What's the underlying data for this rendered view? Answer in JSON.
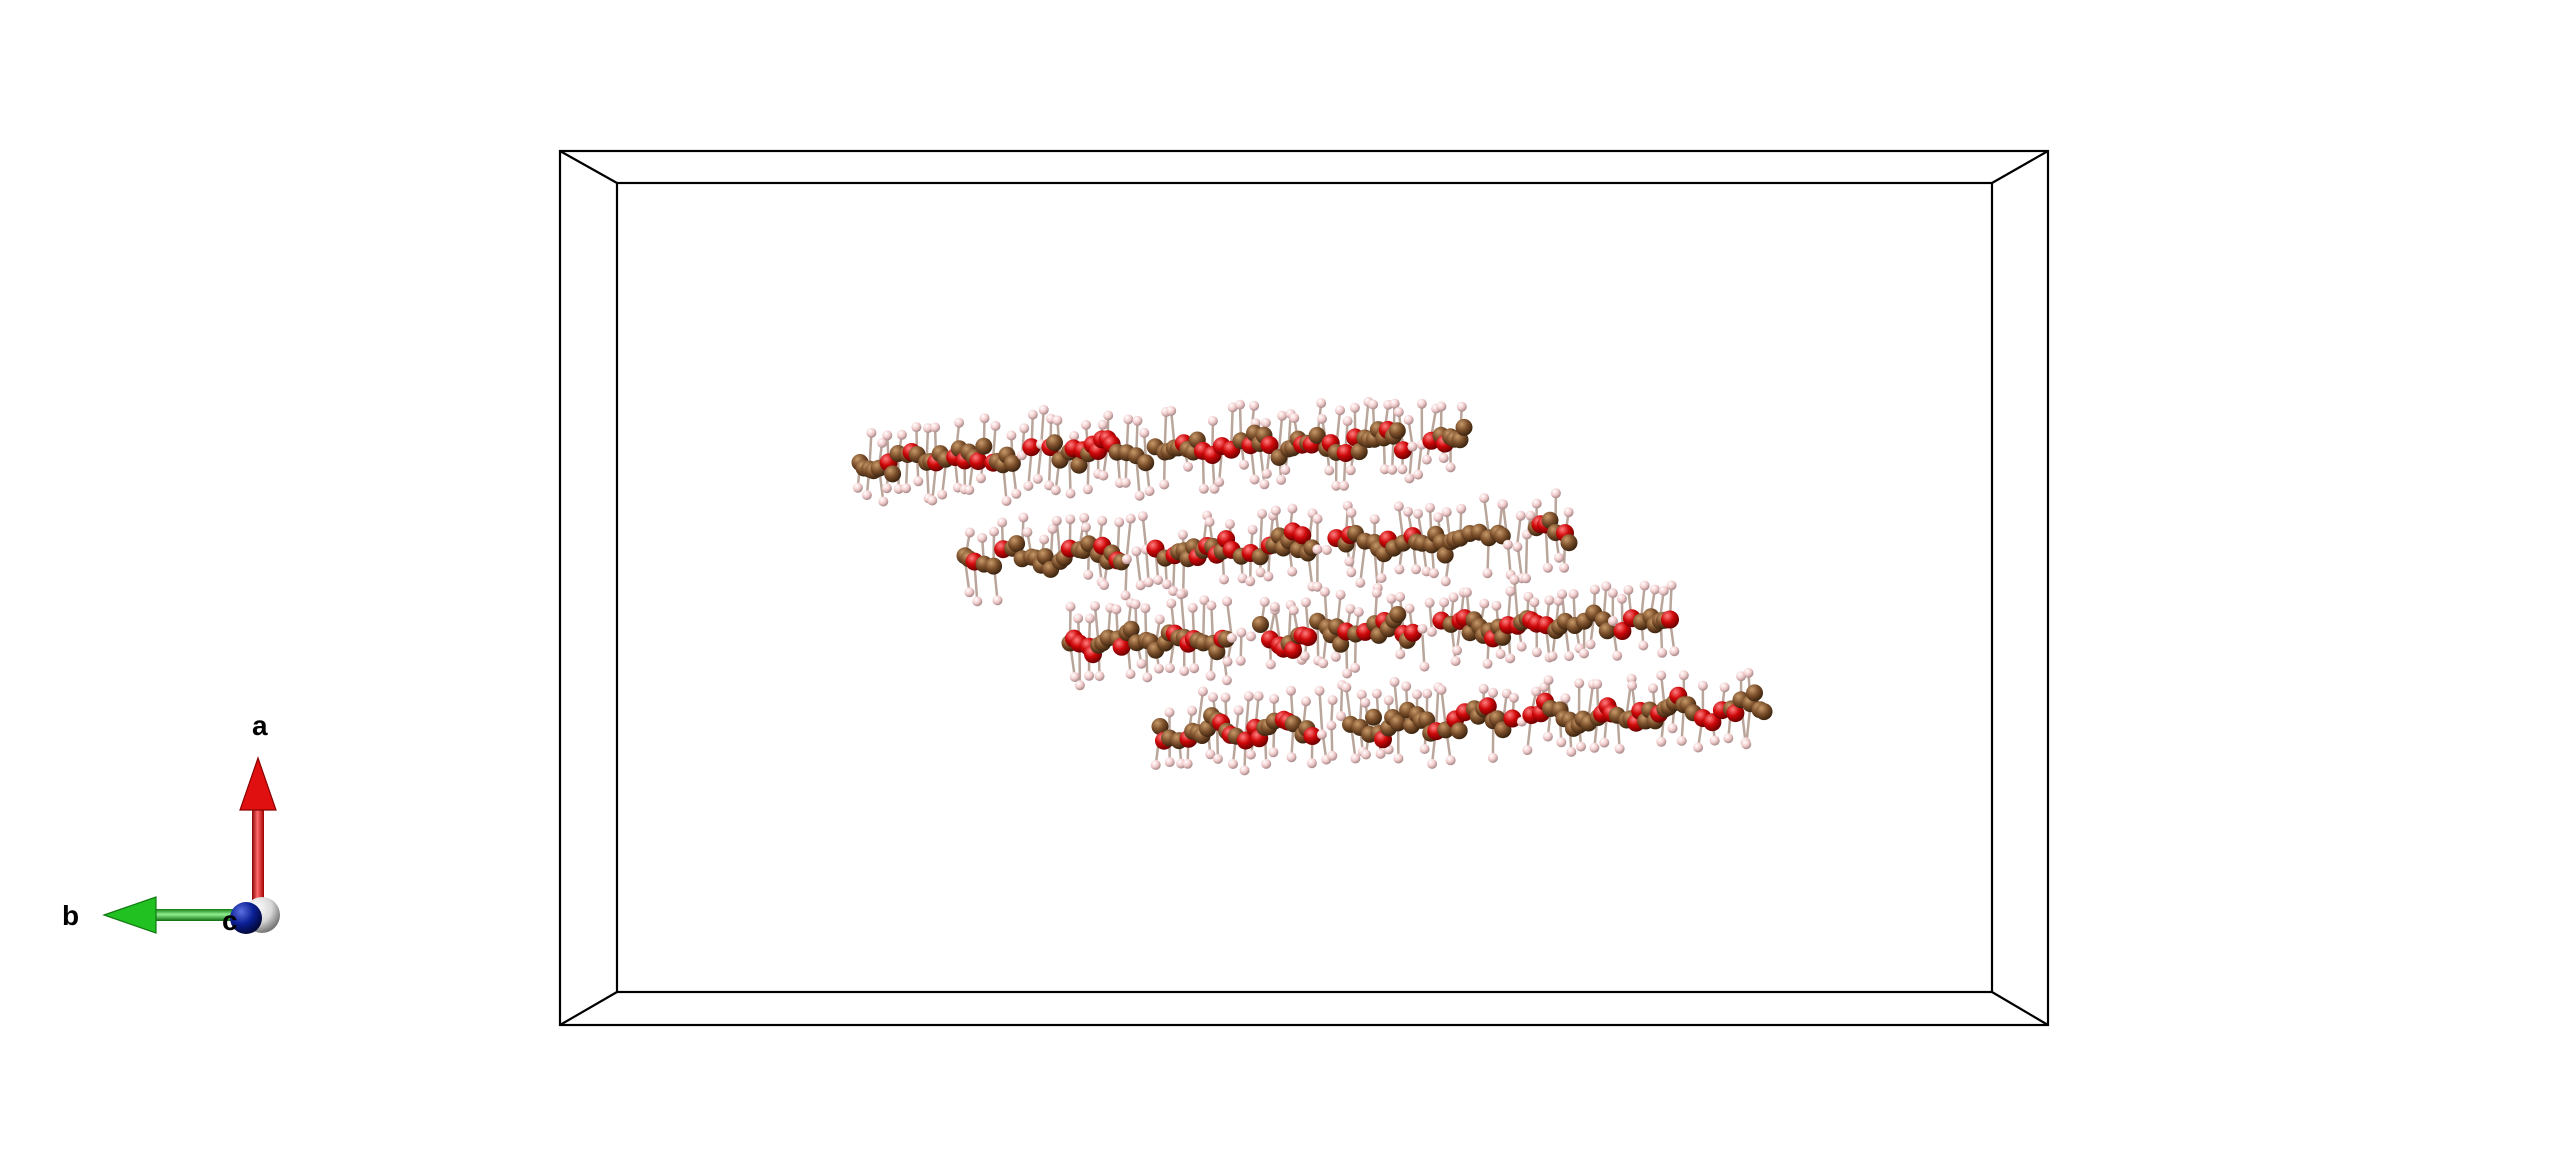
{
  "viewer": {
    "axis_labels": {
      "a": "a",
      "b": "b",
      "c": "c"
    }
  },
  "colors": {
    "background": "#ffffff",
    "cell_edge": "#000000",
    "carbon": "#7a4e2a",
    "oxygen": "#d0080a",
    "hydrogen": "#f3cdcd",
    "axis_a": "#e01010",
    "axis_b": "#22c122",
    "axis_c": "#0b1f95"
  },
  "structure": {
    "chain_count": 4,
    "chain_atom_species": [
      "C",
      "O",
      "H"
    ]
  }
}
